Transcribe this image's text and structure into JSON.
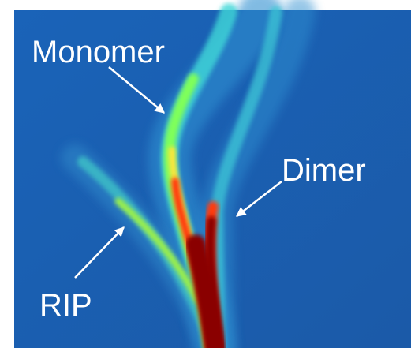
{
  "labels": {
    "monomer": "Monomer",
    "dimer": "Dimer",
    "rip": "RIP"
  }
}
